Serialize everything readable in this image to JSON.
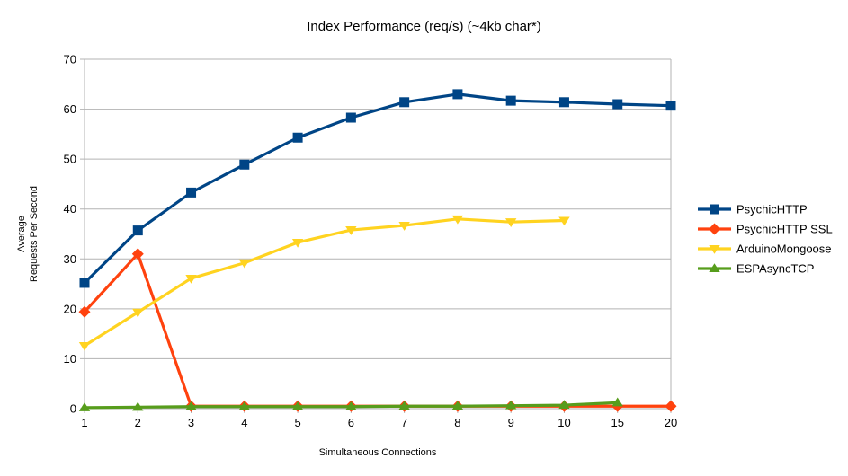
{
  "chart_data": {
    "type": "line",
    "title": "Index Performance (req/s) (~4kb char*)",
    "xlabel": "Simultaneous Connections",
    "ylabel": "Average Requests Per Second",
    "ylabel_lines": [
      "Average",
      "Requests Per Second"
    ],
    "categories": [
      "1",
      "2",
      "3",
      "4",
      "5",
      "6",
      "7",
      "8",
      "9",
      "10",
      "15",
      "20"
    ],
    "ylim": [
      0,
      70
    ],
    "ytick_step": 10,
    "grid": "horizontal",
    "legend_position": "right",
    "colors": {
      "background": "#ffffff",
      "grid": "#b3b3b3",
      "axis": "#b3b3b3",
      "text": "#000000"
    },
    "series": [
      {
        "name": "PsychicHTTP",
        "color": "#004586",
        "marker": "square",
        "values": [
          25.2,
          35.7,
          43.3,
          48.9,
          54.3,
          58.3,
          61.4,
          63.0,
          61.7,
          61.4,
          61.0,
          60.7
        ]
      },
      {
        "name": "PsychicHTTP SSL",
        "color": "#ff420e",
        "marker": "diamond",
        "values": [
          19.4,
          31.0,
          0.5,
          0.5,
          0.5,
          0.5,
          0.5,
          0.5,
          0.5,
          0.5,
          0.5,
          0.5
        ]
      },
      {
        "name": "ArduinoMongoose",
        "color": "#ffd320",
        "marker": "triangle-down",
        "values": [
          12.6,
          19.3,
          26.1,
          29.2,
          33.3,
          35.8,
          36.7,
          38.0,
          37.4,
          37.7,
          null,
          null
        ]
      },
      {
        "name": "ESPAsyncTCP",
        "color": "#579d1c",
        "marker": "triangle-up",
        "values": [
          0.2,
          0.3,
          0.4,
          0.4,
          0.4,
          0.4,
          0.5,
          0.5,
          0.6,
          0.7,
          1.2,
          null
        ]
      }
    ]
  }
}
